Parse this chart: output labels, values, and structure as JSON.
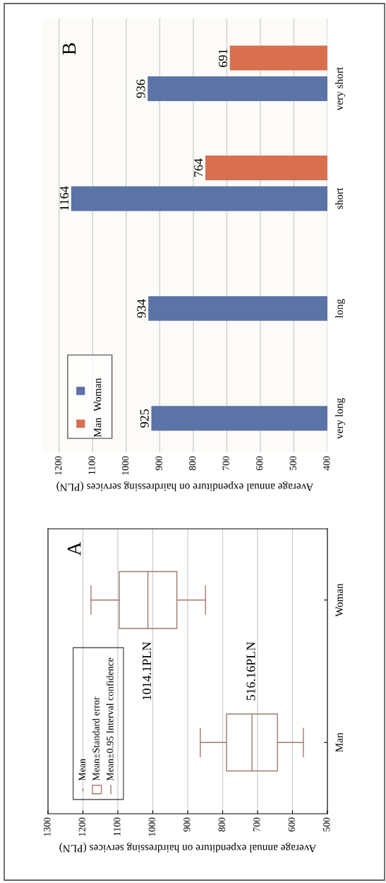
{
  "chart_data": [
    {
      "type": "bar",
      "orientation": "horizontal",
      "title": "B",
      "xlabel": "Average annual expenditure on hairdressing services (PLN)",
      "categories": [
        "very short",
        "short",
        "long",
        "very long"
      ],
      "series": [
        {
          "name": "Man",
          "color": "#d86f4f",
          "values": [
            691,
            764,
            null,
            null
          ]
        },
        {
          "name": "Woman",
          "color": "#5b73a6",
          "values": [
            936,
            1164,
            934,
            925
          ]
        }
      ],
      "xlim": [
        1250,
        400
      ],
      "xticks": [
        400,
        500,
        600,
        700,
        800,
        900,
        1000,
        1100,
        1200
      ],
      "grid": "x",
      "legend": "bottom left",
      "data_labels": true
    },
    {
      "type": "box",
      "orientation": "horizontal",
      "title": "A",
      "xlabel": "Average annual expenditure on hairdressing services (PLN)",
      "categories": [
        "Woman",
        "Man"
      ],
      "boxes": [
        {
          "low": 849,
          "q1": 931,
          "median": 1014,
          "q3": 1096,
          "high": 1177
        },
        {
          "low": 569,
          "q1": 643,
          "median": 716,
          "q3": 789,
          "high": 864
        }
      ],
      "color": "#a07a6c",
      "annotations": [
        "1014.1PLN",
        "516.16PLN",
        "Mean",
        "Mean±Standard error",
        "Mean±0.95 Interval confidence"
      ],
      "xlim": [
        1300,
        500
      ],
      "xticks": [
        500,
        600,
        700,
        800,
        900,
        1000,
        1100,
        1200,
        1300
      ],
      "grid": "x"
    }
  ]
}
